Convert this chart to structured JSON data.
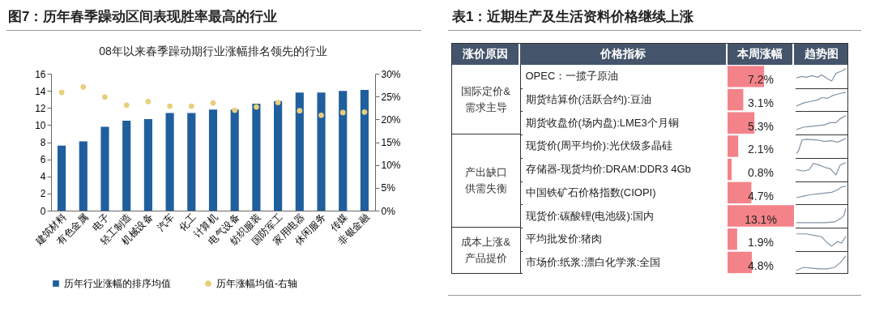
{
  "chart_data": [
    {
      "type": "bar",
      "title": "图7：历年春季躁动区间表现胜率最高的行业",
      "subtitle": "08年以来春季躁动期行业涨幅排名领先的行业",
      "categories": [
        "建筑材料",
        "有色金属",
        "电子",
        "轻工制造",
        "机械设备",
        "汽车",
        "化工",
        "计算机",
        "电气设备",
        "纺织服装",
        "国防军工",
        "家用电器",
        "休闲服务",
        "传媒",
        "非银金融"
      ],
      "series": [
        {
          "name": "历年行业涨幅的排序均值",
          "type": "bar",
          "color": "#1f5f9e",
          "values": [
            7.6,
            8.1,
            9.8,
            10.5,
            10.7,
            11.4,
            11.4,
            11.8,
            11.8,
            12.5,
            12.8,
            13.8,
            13.8,
            14.0,
            14.1
          ]
        },
        {
          "name": "历年涨幅均值-右轴",
          "type": "scatter",
          "axis": "y2",
          "marker": "circle",
          "color": "#e8cf7a",
          "values": [
            25.9,
            27.1,
            24.9,
            23.1,
            23.9,
            22.9,
            22.9,
            23.6,
            22.0,
            22.7,
            23.7,
            21.9,
            20.9,
            21.5,
            21.6
          ]
        }
      ],
      "ylim": [
        0,
        16
      ],
      "yticks": [
        0,
        2,
        4,
        6,
        8,
        10,
        12,
        14,
        16
      ],
      "y2lim": [
        0,
        30
      ],
      "y2ticks": [
        {
          "value": 0,
          "label": "0%"
        },
        {
          "value": 5,
          "label": "5%"
        },
        {
          "value": 10,
          "label": "10%"
        },
        {
          "value": 15,
          "label": "15%"
        },
        {
          "value": 20,
          "label": "20%"
        },
        {
          "value": 25,
          "label": "25%"
        },
        {
          "value": 30,
          "label": "30%"
        }
      ],
      "legend": "bottom"
    },
    {
      "type": "bar",
      "orientation": "horizontal",
      "title": "表1：近期生产及生活资料价格继续上涨",
      "categories": [
        "OPEC：一揽子原油",
        "期货结算价(活跃合约):豆油",
        "期货收盘价(场内盘):LME3个月铜",
        "现货价(周平均价):光伏级多晶硅",
        "存储器-现货均价:DRAM:DDR3 4Gb",
        "中国铁矿石价格指数(CIOPI)",
        "现货价:碳酸锂(电池级):国内",
        "平均批发价:猪肉",
        "市场价:纸浆:漂白化学浆:全国"
      ],
      "values": [
        7.2,
        3.1,
        5.3,
        2.1,
        0.8,
        4.7,
        13.1,
        1.9,
        4.8
      ],
      "value_labels": [
        "7.2%",
        "3.1%",
        "5.3%",
        "2.1%",
        "0.8%",
        "4.7%",
        "13.1%",
        "1.9%",
        "4.8%"
      ],
      "color": "#f26d74",
      "tick_labels": "y",
      "annotations": [
        "涨价原因",
        "价格指标",
        "本周涨幅",
        "趋势图",
        "国际定价&需求主导",
        "产出缺口供需失衡",
        "成本上涨&产品提价"
      ]
    }
  ]
}
